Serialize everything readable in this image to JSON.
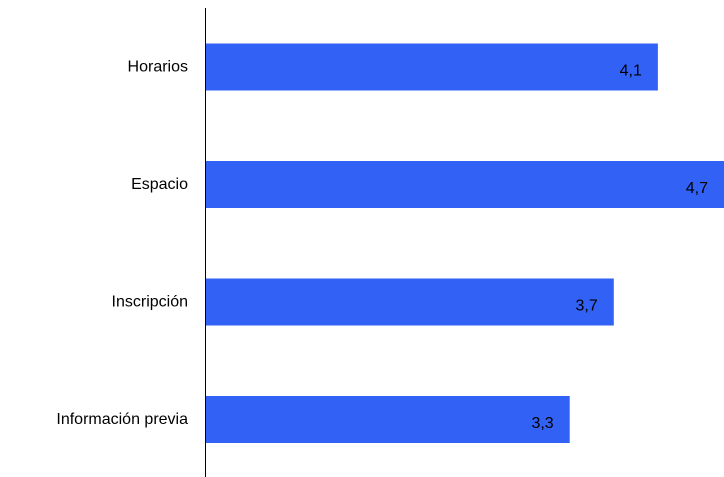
{
  "chart_data": {
    "type": "bar",
    "orientation": "horizontal",
    "categories": [
      "Horarios",
      "Espacio",
      "Inscripción",
      "Información previa"
    ],
    "values": [
      4.1,
      4.7,
      3.7,
      3.3
    ],
    "value_labels": [
      "4,1",
      "4,7",
      "3,7",
      "3,3"
    ],
    "xlim": [
      0,
      4.7
    ],
    "bar_color": "#3161f5",
    "axis_color": "#000000",
    "grid": false,
    "legend": "none"
  }
}
